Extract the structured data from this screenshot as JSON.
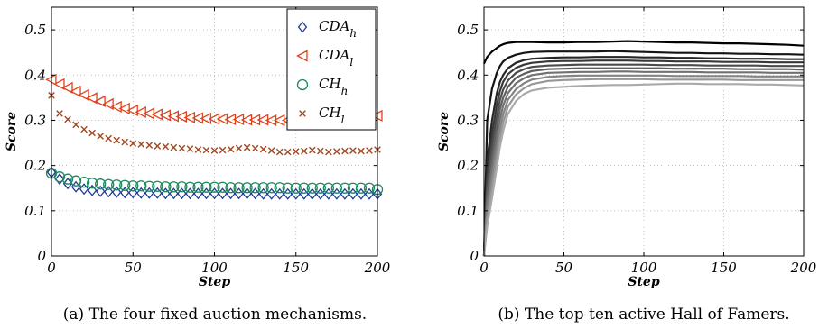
{
  "chart_data": [
    {
      "type": "scatter",
      "caption": "(a) The four fixed auction mechanisms.",
      "xlabel": "Step",
      "ylabel": "Score",
      "xlim": [
        0,
        200
      ],
      "ylim": [
        0,
        0.55
      ],
      "xticks": [
        "0",
        "50",
        "100",
        "150",
        "200"
      ],
      "yticks": [
        "0",
        "0.1",
        "0.2",
        "0.3",
        "0.4",
        "0.5"
      ],
      "grid": true,
      "legend_position": "top-right",
      "x": [
        0,
        5,
        10,
        15,
        20,
        25,
        30,
        35,
        40,
        45,
        50,
        55,
        60,
        65,
        70,
        75,
        80,
        85,
        90,
        95,
        100,
        105,
        110,
        115,
        120,
        125,
        130,
        135,
        140,
        145,
        150,
        155,
        160,
        165,
        170,
        175,
        180,
        185,
        190,
        195,
        200
      ],
      "series": [
        {
          "name": "CDA",
          "sub": "h",
          "marker": "diamond",
          "color": "#1f3a93",
          "values": [
            0.185,
            0.17,
            0.16,
            0.153,
            0.148,
            0.145,
            0.143,
            0.142,
            0.141,
            0.14,
            0.14,
            0.139,
            0.139,
            0.139,
            0.138,
            0.138,
            0.138,
            0.138,
            0.138,
            0.138,
            0.138,
            0.138,
            0.138,
            0.138,
            0.138,
            0.138,
            0.137,
            0.137,
            0.137,
            0.137,
            0.137,
            0.137,
            0.137,
            0.137,
            0.137,
            0.137,
            0.137,
            0.137,
            0.137,
            0.137,
            0.137
          ]
        },
        {
          "name": "CDA",
          "sub": "l",
          "marker": "triangle-left",
          "color": "#e0421c",
          "values": [
            0.39,
            0.38,
            0.372,
            0.364,
            0.356,
            0.349,
            0.342,
            0.336,
            0.33,
            0.326,
            0.322,
            0.318,
            0.315,
            0.313,
            0.311,
            0.309,
            0.308,
            0.306,
            0.305,
            0.304,
            0.303,
            0.303,
            0.302,
            0.302,
            0.301,
            0.301,
            0.301,
            0.3,
            0.3,
            0.3,
            0.3,
            0.3,
            0.3,
            0.3,
            0.3,
            0.3,
            0.3,
            0.3,
            0.3,
            0.3,
            0.31
          ]
        },
        {
          "name": "CH",
          "sub": "h",
          "marker": "circle",
          "color": "#1a8a5c",
          "values": [
            0.183,
            0.175,
            0.17,
            0.166,
            0.163,
            0.161,
            0.159,
            0.158,
            0.157,
            0.156,
            0.155,
            0.155,
            0.154,
            0.154,
            0.153,
            0.153,
            0.153,
            0.152,
            0.152,
            0.152,
            0.152,
            0.152,
            0.151,
            0.151,
            0.151,
            0.151,
            0.151,
            0.151,
            0.151,
            0.15,
            0.15,
            0.15,
            0.15,
            0.15,
            0.15,
            0.15,
            0.15,
            0.15,
            0.15,
            0.15,
            0.147
          ]
        },
        {
          "name": "CH",
          "sub": "l",
          "marker": "x",
          "color": "#a0461e",
          "values": [
            0.355,
            0.315,
            0.302,
            0.29,
            0.28,
            0.272,
            0.265,
            0.26,
            0.256,
            0.252,
            0.249,
            0.247,
            0.245,
            0.243,
            0.242,
            0.24,
            0.238,
            0.237,
            0.235,
            0.234,
            0.233,
            0.234,
            0.236,
            0.238,
            0.24,
            0.238,
            0.236,
            0.233,
            0.23,
            0.23,
            0.231,
            0.232,
            0.234,
            0.232,
            0.23,
            0.231,
            0.232,
            0.233,
            0.232,
            0.233,
            0.235
          ]
        }
      ]
    },
    {
      "type": "line",
      "caption": "(b) The top ten active Hall of Famers.",
      "xlabel": "Step",
      "ylabel": "Score",
      "xlim": [
        0,
        200
      ],
      "ylim": [
        0,
        0.55
      ],
      "xticks": [
        "0",
        "50",
        "100",
        "150",
        "200"
      ],
      "yticks": [
        "0",
        "0.1",
        "0.2",
        "0.3",
        "0.4",
        "0.5"
      ],
      "grid": true,
      "x": [
        0,
        2,
        5,
        8,
        10,
        12,
        15,
        20,
        25,
        30,
        40,
        50,
        60,
        70,
        80,
        90,
        100,
        110,
        120,
        130,
        140,
        150,
        160,
        170,
        180,
        190,
        200
      ],
      "series": [
        {
          "color": "#000000",
          "values": [
            0.425,
            0.44,
            0.452,
            0.46,
            0.465,
            0.468,
            0.471,
            0.473,
            0.473,
            0.473,
            0.472,
            0.472,
            0.473,
            0.473,
            0.474,
            0.475,
            0.474,
            0.473,
            0.472,
            0.472,
            0.471,
            0.47,
            0.47,
            0.469,
            0.468,
            0.467,
            0.465
          ]
        },
        {
          "color": "#141414",
          "values": [
            0.0,
            0.3,
            0.37,
            0.405,
            0.42,
            0.43,
            0.438,
            0.445,
            0.449,
            0.451,
            0.452,
            0.452,
            0.452,
            0.452,
            0.453,
            0.452,
            0.451,
            0.45,
            0.449,
            0.449,
            0.448,
            0.448,
            0.447,
            0.447,
            0.446,
            0.446,
            0.445
          ]
        },
        {
          "color": "#262626",
          "values": [
            0.0,
            0.21,
            0.3,
            0.36,
            0.385,
            0.4,
            0.415,
            0.427,
            0.433,
            0.436,
            0.438,
            0.439,
            0.439,
            0.44,
            0.44,
            0.44,
            0.439,
            0.439,
            0.438,
            0.438,
            0.437,
            0.437,
            0.436,
            0.436,
            0.436,
            0.435,
            0.435
          ]
        },
        {
          "color": "#383838",
          "values": [
            0.0,
            0.18,
            0.27,
            0.335,
            0.365,
            0.385,
            0.402,
            0.416,
            0.423,
            0.427,
            0.43,
            0.431,
            0.431,
            0.432,
            0.432,
            0.432,
            0.431,
            0.431,
            0.43,
            0.43,
            0.43,
            0.429,
            0.429,
            0.429,
            0.428,
            0.428,
            0.428
          ]
        },
        {
          "color": "#4b4b4b",
          "values": [
            0.0,
            0.16,
            0.245,
            0.31,
            0.345,
            0.368,
            0.388,
            0.405,
            0.413,
            0.418,
            0.421,
            0.422,
            0.423,
            0.423,
            0.423,
            0.423,
            0.423,
            0.422,
            0.422,
            0.422,
            0.421,
            0.421,
            0.421,
            0.421,
            0.42,
            0.42,
            0.42
          ]
        },
        {
          "color": "#5e5e5e",
          "values": [
            0.0,
            0.14,
            0.22,
            0.285,
            0.325,
            0.35,
            0.374,
            0.394,
            0.403,
            0.409,
            0.413,
            0.414,
            0.415,
            0.415,
            0.415,
            0.415,
            0.415,
            0.415,
            0.414,
            0.414,
            0.414,
            0.414,
            0.413,
            0.413,
            0.413,
            0.413,
            0.412
          ]
        },
        {
          "color": "#717171",
          "values": [
            0.0,
            0.12,
            0.195,
            0.262,
            0.303,
            0.332,
            0.36,
            0.382,
            0.393,
            0.4,
            0.405,
            0.406,
            0.407,
            0.407,
            0.408,
            0.408,
            0.407,
            0.407,
            0.407,
            0.407,
            0.406,
            0.406,
            0.406,
            0.406,
            0.405,
            0.405,
            0.405
          ]
        },
        {
          "color": "#848484",
          "values": [
            0.0,
            0.1,
            0.172,
            0.24,
            0.282,
            0.313,
            0.345,
            0.369,
            0.382,
            0.39,
            0.396,
            0.398,
            0.399,
            0.399,
            0.399,
            0.399,
            0.399,
            0.399,
            0.398,
            0.398,
            0.398,
            0.398,
            0.398,
            0.397,
            0.397,
            0.397,
            0.397
          ]
        },
        {
          "color": "#979797",
          "values": [
            0.0,
            0.082,
            0.15,
            0.218,
            0.262,
            0.295,
            0.33,
            0.357,
            0.371,
            0.38,
            0.387,
            0.389,
            0.39,
            0.391,
            0.391,
            0.391,
            0.391,
            0.39,
            0.39,
            0.39,
            0.39,
            0.39,
            0.389,
            0.389,
            0.389,
            0.389,
            0.389
          ]
        },
        {
          "color": "#aaaaaa",
          "values": [
            0.0,
            0.065,
            0.128,
            0.196,
            0.242,
            0.276,
            0.314,
            0.343,
            0.358,
            0.366,
            0.372,
            0.374,
            0.376,
            0.377,
            0.378,
            0.378,
            0.379,
            0.38,
            0.381,
            0.381,
            0.38,
            0.38,
            0.38,
            0.379,
            0.379,
            0.378,
            0.377
          ]
        }
      ]
    }
  ]
}
